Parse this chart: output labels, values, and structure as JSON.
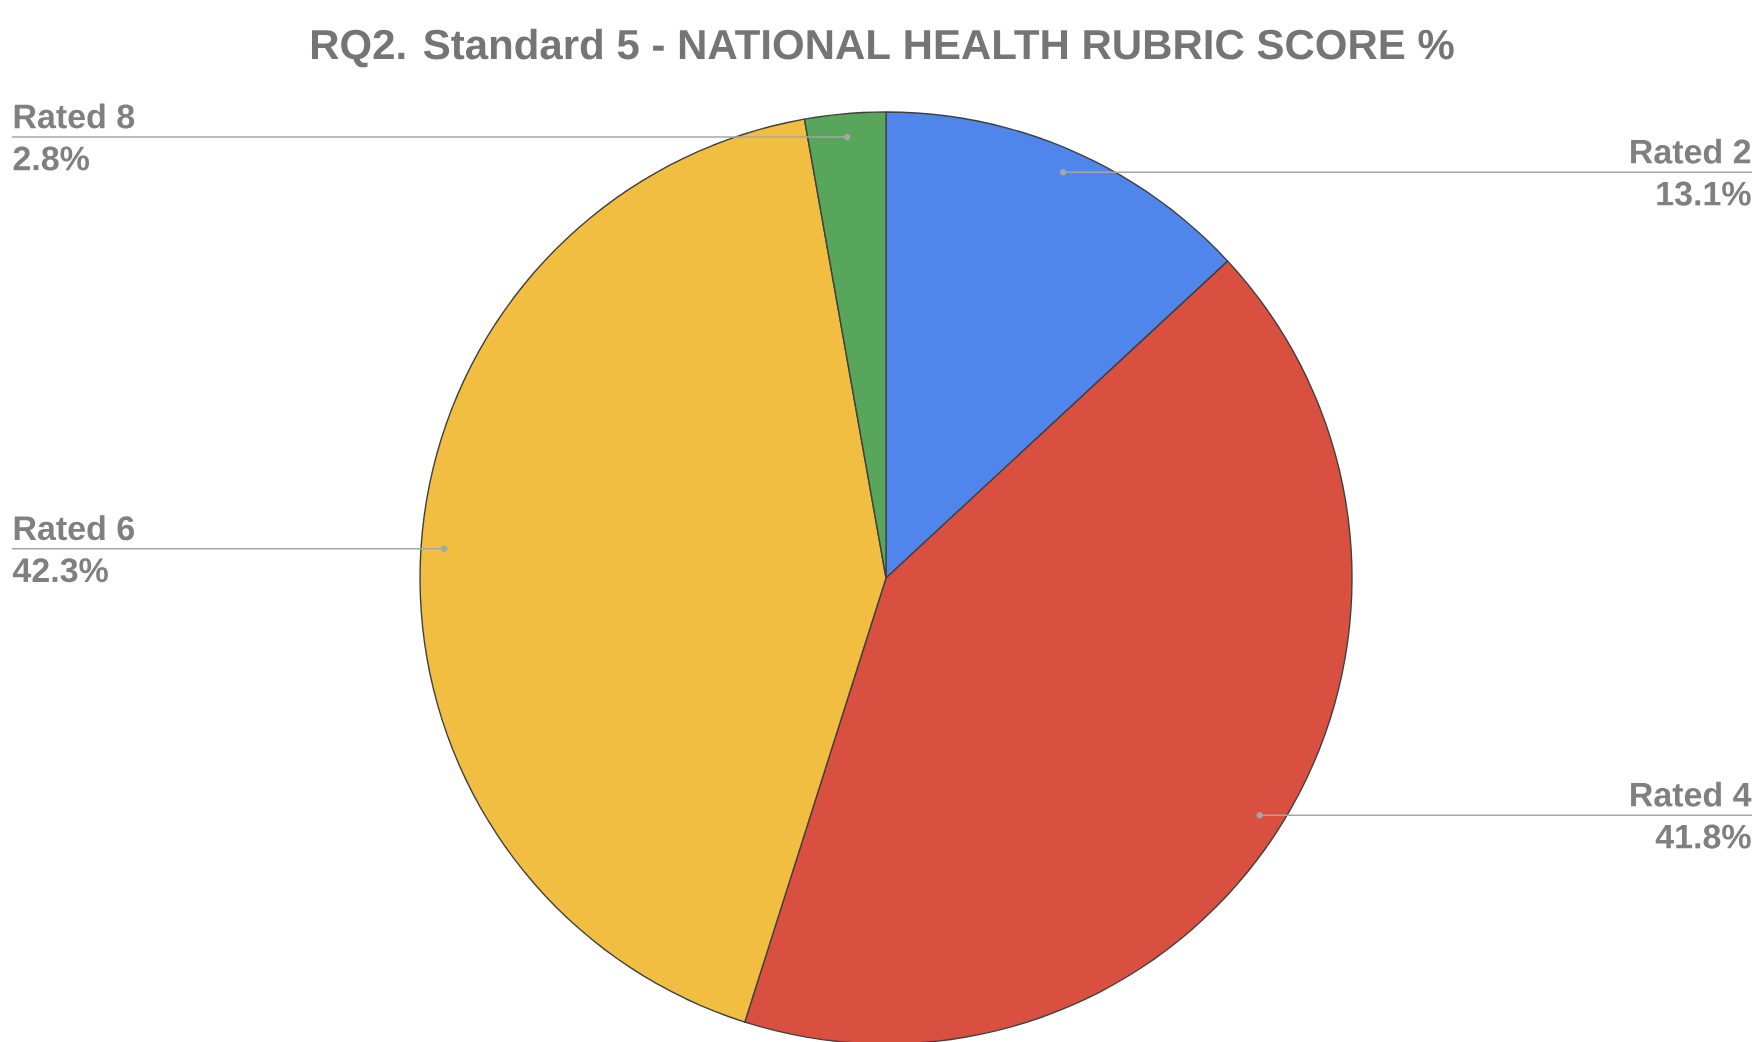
{
  "chart_data": {
    "type": "pie",
    "title": "RQ2. Standard 5 - NATIONAL HEALTH RUBRIC SCORE %",
    "categories": [
      "Rated 2",
      "Rated 4",
      "Rated 6",
      "Rated 8"
    ],
    "values": [
      13.1,
      41.8,
      42.3,
      2.8
    ],
    "value_labels": [
      "13.1%",
      "41.8%",
      "42.3%",
      "2.8%"
    ],
    "colors": [
      "#5086ec",
      "#d95040",
      "#f1be42",
      "#58a55c"
    ]
  }
}
